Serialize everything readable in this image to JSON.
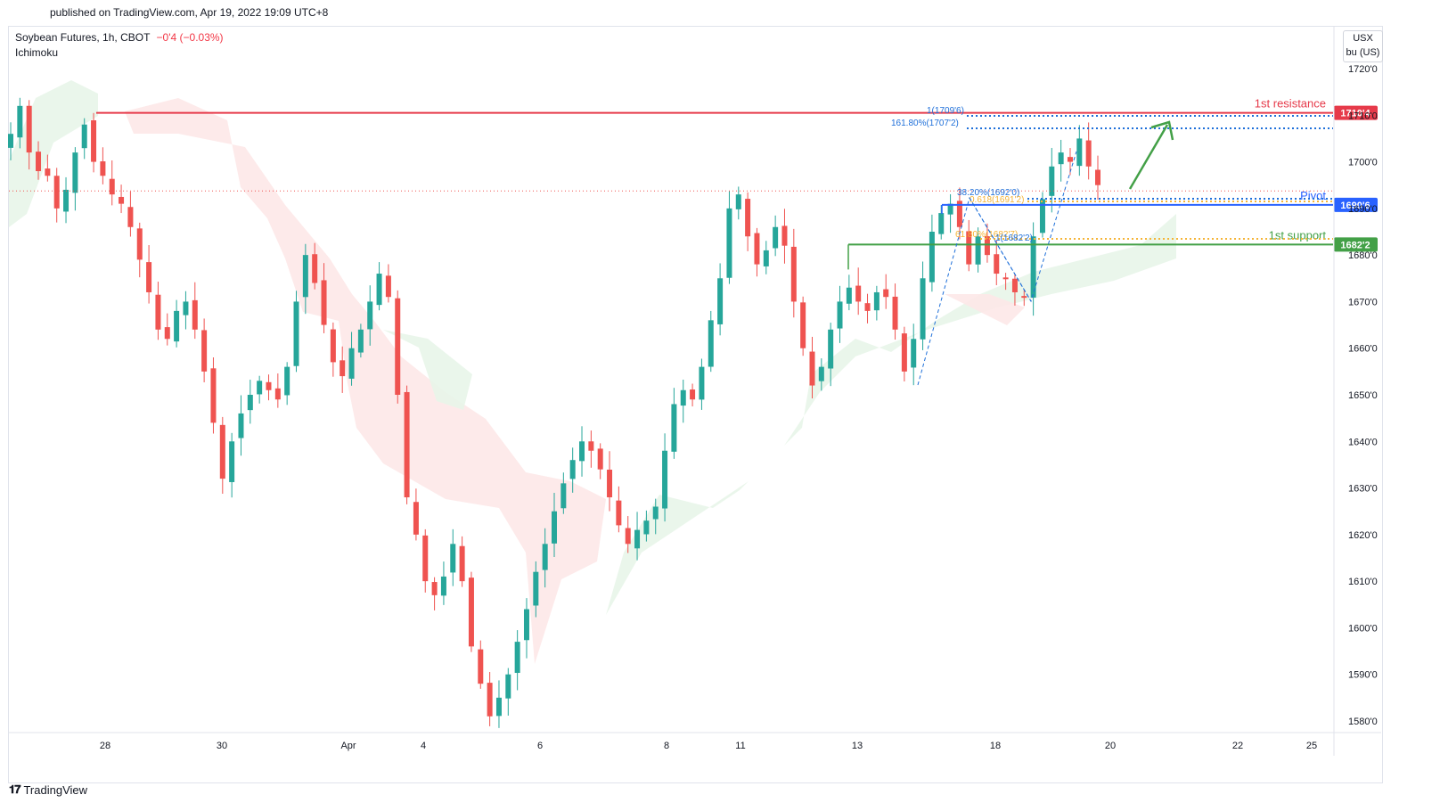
{
  "header": {
    "published": "published on TradingView.com, Apr 19, 2022 19:09 UTC+8",
    "symbol": "Soybean Futures, 1h, CBOT",
    "change": "−0'4 (−0.03%)",
    "indicator": "Ichimoku"
  },
  "unit": {
    "currency": "USX",
    "quantity": "bu (US)"
  },
  "footer": {
    "logo_text": "TradingView"
  },
  "colors": {
    "up": "#26a69a",
    "down": "#ef5350",
    "resistance": "#e63a4a",
    "pivot": "#2962ff",
    "support": "#43a047",
    "cloud_bull": "#e8f5e9",
    "cloud_bear": "#fde8e8",
    "fib_blue": "#1e6fd9",
    "fib_orange": "#f5b437"
  },
  "chart_data": {
    "type": "candlestick",
    "y_range": [
      1578,
      1724
    ],
    "y_ticks": [
      "1720'0",
      "1710'0",
      "1700'0",
      "1690'0",
      "1680'0",
      "1670'0",
      "1660'0",
      "1650'0",
      "1640'0",
      "1630'0",
      "1620'0",
      "1610'0",
      "1600'0",
      "1590'0",
      "1580'0"
    ],
    "y_tick_values": [
      1720,
      1710,
      1700,
      1690,
      1680,
      1670,
      1660,
      1650,
      1640,
      1630,
      1620,
      1610,
      1600,
      1590,
      1580
    ],
    "x_ticks": [
      "28",
      "30",
      "Apr",
      "4",
      "6",
      "8",
      "11",
      "13",
      "18",
      "20",
      "22",
      "25"
    ],
    "close_path": [
      1706,
      1712,
      1702,
      1698,
      1697,
      1690,
      1694,
      1702,
      1708,
      1700,
      1697,
      1693,
      1691,
      1686,
      1679,
      1672,
      1664,
      1662,
      1668,
      1670,
      1664,
      1655,
      1644,
      1632,
      1640,
      1646,
      1650,
      1653,
      1651,
      1649,
      1656,
      1670,
      1680,
      1674,
      1665,
      1657,
      1654,
      1660,
      1664,
      1670,
      1676,
      1671,
      1650,
      1628,
      1620,
      1610,
      1607,
      1611,
      1618,
      1610,
      1596,
      1588,
      1581,
      1585,
      1590,
      1597,
      1604,
      1612,
      1618,
      1625,
      1631,
      1636,
      1640,
      1638,
      1634,
      1628,
      1622,
      1618,
      1621,
      1623,
      1626,
      1638,
      1648,
      1651,
      1649,
      1656,
      1666,
      1675,
      1690,
      1693,
      1684,
      1678,
      1681,
      1686,
      1682,
      1670,
      1660,
      1652,
      1656,
      1664,
      1670,
      1673,
      1670,
      1668,
      1672,
      1671,
      1664,
      1655,
      1662,
      1675,
      1685,
      1689,
      1691,
      1686,
      1678,
      1684,
      1680,
      1676,
      1675,
      1672,
      1671,
      1684,
      1692,
      1699,
      1702,
      1700,
      1705,
      1699,
      1695
    ],
    "levels": [
      {
        "label": "1st resistance",
        "price_label": "1710'4",
        "value": 1710.5
      },
      {
        "label": "Pivot",
        "price_label": "1690'6",
        "value": 1690.75
      },
      {
        "label": "1st support",
        "price_label": "1682'2",
        "value": 1682.25
      }
    ],
    "fib_labels": {
      "ext_100": "1(1709'6)",
      "ext_161": "161.80%(1707'2)",
      "ret_38": "38.20%(1692'0)",
      "ret_618": "0.618(1691'2)",
      "ret_61": "61.80%(1682'7)",
      "ret_100": "1(1682'2)"
    },
    "last_price_value": 1693.75
  }
}
